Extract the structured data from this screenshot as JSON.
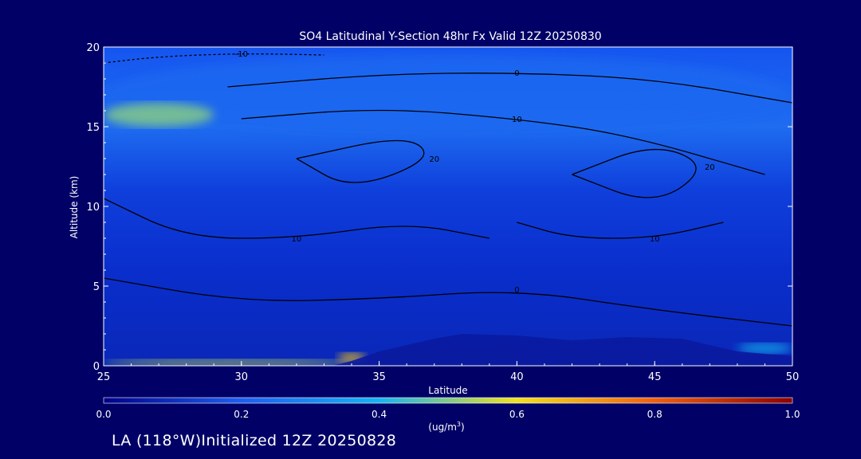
{
  "chart_data": {
    "type": "heatmap",
    "title": "SO4 Latitudinal Y-Section 48hr  Fx Valid 12Z 20250830",
    "xlabel": "Latitude",
    "ylabel": "Altitude (km)",
    "xlim": [
      25,
      50
    ],
    "ylim": [
      0,
      20
    ],
    "x_ticks": [
      "25",
      "30",
      "35",
      "40",
      "45",
      "50"
    ],
    "y_ticks": [
      "0",
      "5",
      "10",
      "15",
      "20"
    ],
    "colorbar": {
      "min": 0.0,
      "max": 1.0,
      "ticks": [
        "0.0",
        "0.2",
        "0.4",
        "0.6",
        "0.8",
        "1.0"
      ],
      "unit_label": "(ug/m",
      "unit_sup": "3",
      "unit_close": ")",
      "colors": [
        "#0000aa",
        "#1e5ef0",
        "#16b4f0",
        "#f0e020",
        "#f08010",
        "#8b0000"
      ]
    },
    "fill_regions": [
      {
        "name": "upper-layer-band",
        "lat": [
          25,
          50
        ],
        "alt": [
          14.5,
          19.5
        ],
        "value": 0.22
      },
      {
        "name": "west-plume",
        "lat": [
          25,
          29
        ],
        "alt": [
          15,
          16.5
        ],
        "value": 0.5
      },
      {
        "name": "surface-plume",
        "lat": [
          25,
          34
        ],
        "alt": [
          0,
          0.4
        ],
        "value": 0.55
      },
      {
        "name": "coastal-plume",
        "lat": [
          33.5,
          34.5
        ],
        "alt": [
          0.2,
          0.8
        ],
        "value": 0.65
      },
      {
        "name": "east-surface-plume",
        "lat": [
          48,
          50
        ],
        "alt": [
          0.8,
          1.4
        ],
        "value": 0.4
      }
    ],
    "contours": [
      {
        "level": "0",
        "points": [
          [
            29.5,
            17.5
          ],
          [
            35,
            18.3
          ],
          [
            40,
            18.4
          ],
          [
            45,
            18.0
          ],
          [
            50,
            16.5
          ]
        ]
      },
      {
        "level": "10",
        "points": [
          [
            30,
            15.5
          ],
          [
            35,
            16.2
          ],
          [
            40,
            15.5
          ],
          [
            44,
            14.5
          ],
          [
            49,
            12
          ]
        ]
      },
      {
        "level": "20",
        "points": [
          [
            32,
            13
          ],
          [
            36,
            14.5
          ],
          [
            37,
            13
          ],
          [
            34,
            11
          ],
          [
            32,
            13
          ]
        ]
      },
      {
        "level": "20",
        "points": [
          [
            42,
            12
          ],
          [
            45,
            14
          ],
          [
            47,
            12.5
          ],
          [
            45,
            10
          ],
          [
            42,
            12
          ]
        ]
      },
      {
        "level": "10",
        "points": [
          [
            25,
            10.5
          ],
          [
            28,
            8
          ],
          [
            32,
            8
          ],
          [
            36,
            9
          ],
          [
            39,
            8
          ]
        ]
      },
      {
        "level": "10",
        "points": [
          [
            40,
            9
          ],
          [
            42,
            8
          ],
          [
            45,
            8
          ],
          [
            47.5,
            9
          ]
        ]
      },
      {
        "level": "0",
        "points": [
          [
            25,
            5.5
          ],
          [
            30,
            4
          ],
          [
            35,
            4.2
          ],
          [
            40,
            4.8
          ],
          [
            45,
            3.5
          ],
          [
            50,
            2.5
          ]
        ]
      },
      {
        "level": "-10",
        "points": [
          [
            25,
            19
          ],
          [
            27,
            19.4
          ],
          [
            30,
            19.6
          ],
          [
            33,
            19.5
          ]
        ]
      }
    ]
  },
  "footer": {
    "text": "LA (118°W)Initialized 12Z 20250828"
  }
}
